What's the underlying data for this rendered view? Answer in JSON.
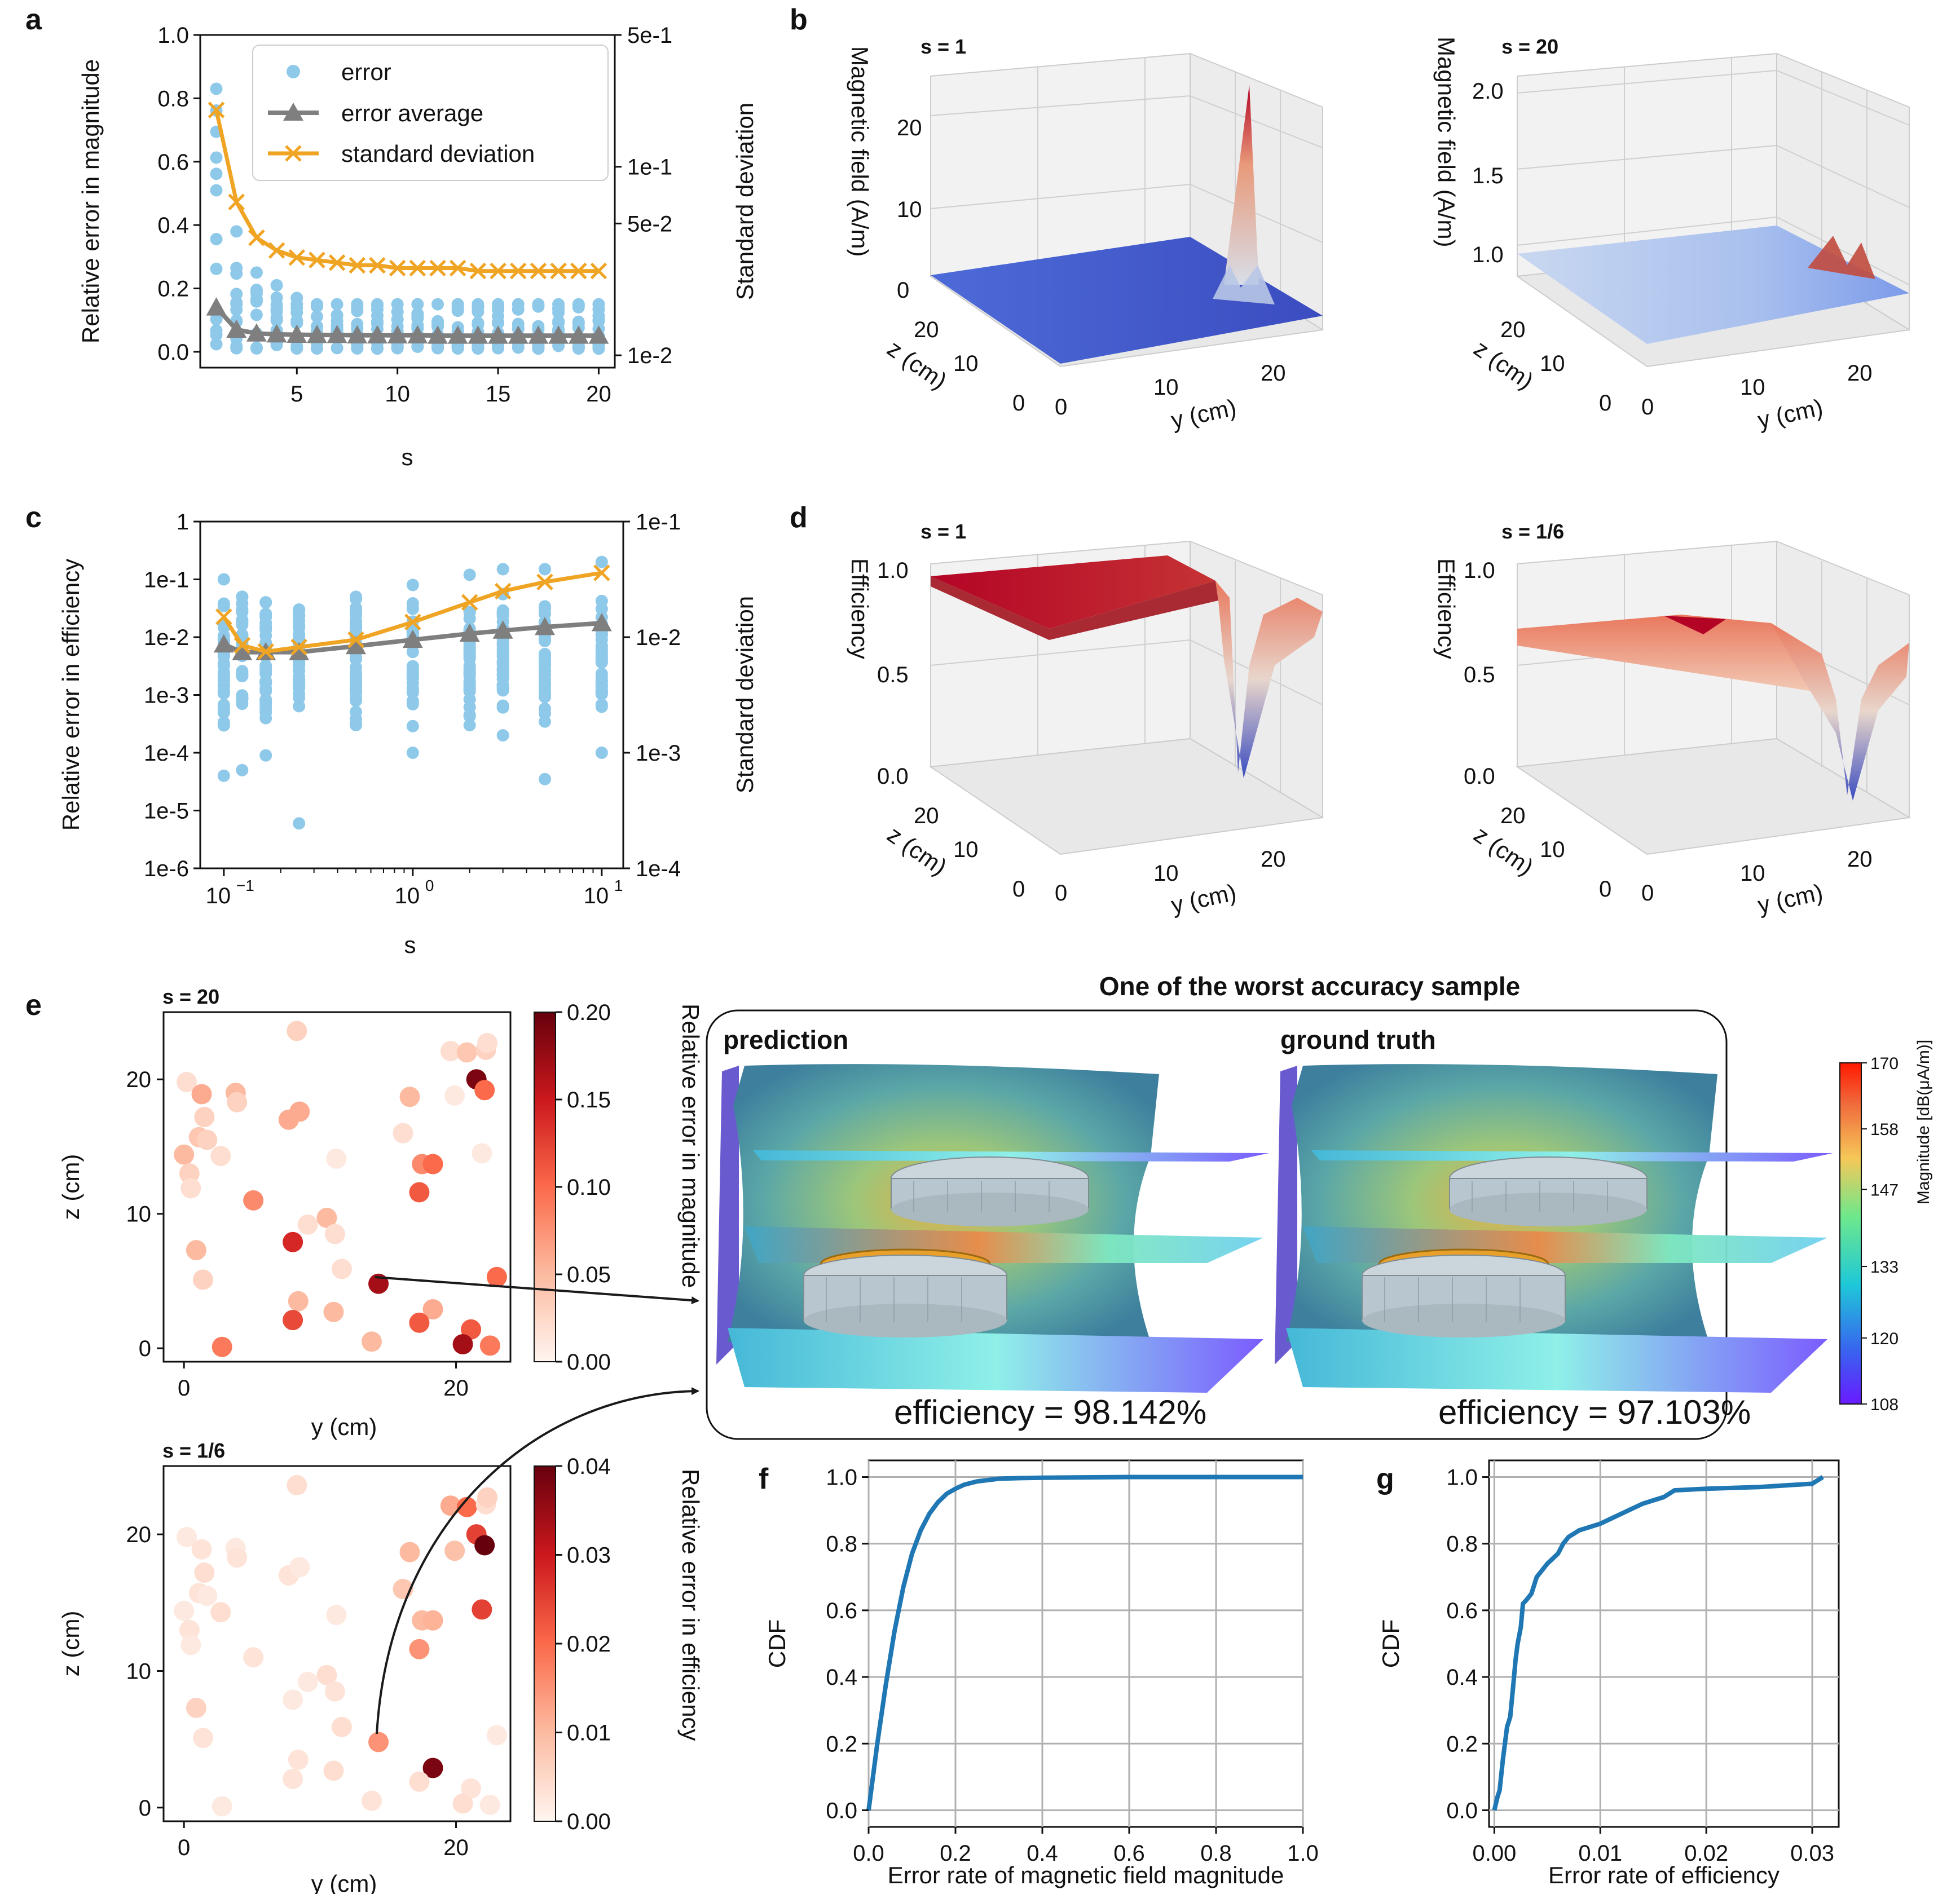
{
  "figure": {
    "panel_letters": [
      "a",
      "b",
      "c",
      "d",
      "e",
      "f",
      "g"
    ],
    "colors": {
      "error_dot": "#8ec9ea",
      "avg": "#7f7f7f",
      "std": "#f0a424",
      "cdf_line": "#1f77b4",
      "grid": "#b0b0b0"
    }
  },
  "chart_data": [
    {
      "id": "a",
      "type": "scatter",
      "title": "",
      "xlabel": "s",
      "ylabel": "Relative error in magnitude",
      "ylabel_right": "Standard deviation",
      "xlim": [
        0.2,
        20.8
      ],
      "ylim": [
        -0.05,
        1.0
      ],
      "ylim_right_log": [
        0.0086,
        0.5
      ],
      "x_ticks": [
        5,
        10,
        15,
        20
      ],
      "x_tick_labels": [
        "5",
        "10",
        "15",
        "20"
      ],
      "y_ticks": [
        0.0,
        0.2,
        0.4,
        0.6,
        0.8,
        1.0
      ],
      "y_tick_labels": [
        "0.0",
        "0.2",
        "0.4",
        "0.6",
        "0.8",
        "1.0"
      ],
      "y_right_ticks": [
        0.01,
        0.05,
        0.1,
        0.5
      ],
      "y_right_tick_labels": [
        "1e-2",
        "5e-2",
        "1e-1",
        "5e-1"
      ],
      "legend": [
        "error",
        "error average",
        "standard deviation"
      ],
      "x": [
        1,
        2,
        3,
        4,
        5,
        6,
        7,
        8,
        9,
        10,
        11,
        12,
        13,
        14,
        15,
        16,
        17,
        18,
        19,
        20
      ],
      "series": [
        {
          "name": "error average",
          "axis": "left",
          "values": [
            0.14,
            0.07,
            0.058,
            0.055,
            0.054,
            0.053,
            0.053,
            0.052,
            0.052,
            0.052,
            0.052,
            0.051,
            0.051,
            0.051,
            0.051,
            0.051,
            0.051,
            0.051,
            0.051,
            0.051
          ]
        },
        {
          "name": "standard deviation",
          "axis": "right",
          "values": [
            0.2,
            0.065,
            0.042,
            0.036,
            0.033,
            0.032,
            0.031,
            0.03,
            0.03,
            0.029,
            0.029,
            0.029,
            0.029,
            0.028,
            0.028,
            0.028,
            0.028,
            0.028,
            0.028,
            0.028
          ]
        },
        {
          "name": "error",
          "axis": "left",
          "max": [
            0.83,
            0.38,
            0.25,
            0.21,
            0.17,
            0.15,
            0.15,
            0.15,
            0.15,
            0.15,
            0.15,
            0.15,
            0.15,
            0.15,
            0.15,
            0.15,
            0.15,
            0.15,
            0.15,
            0.15
          ],
          "min": [
            0.01,
            0.01,
            0.01,
            0.01,
            0.01,
            0.01,
            0.01,
            0.01,
            0.01,
            0.01,
            0.01,
            0.01,
            0.01,
            0.01,
            0.01,
            0.01,
            0.01,
            0.01,
            0.01,
            0.01
          ]
        }
      ]
    },
    {
      "id": "b1",
      "type": "surface",
      "title": "s = 1",
      "zlabel": "Magnetic field (A/m)",
      "ylabel": "y (cm)",
      "xlabel": "z (cm)",
      "z_tick_labels": [
        "0",
        "10",
        "20"
      ],
      "y_tick_labels": [
        "0",
        "10",
        "20"
      ],
      "x_tick_labels": [
        "0",
        "10",
        "20"
      ],
      "zlim": [
        0,
        25
      ],
      "peak_value": 22
    },
    {
      "id": "b2",
      "type": "surface",
      "title": "s = 20",
      "zlabel": "Magnetic field (A/m)",
      "ylabel": "y (cm)",
      "xlabel": "z (cm)",
      "z_tick_labels": [
        "1.0",
        "1.5",
        "2.0"
      ],
      "y_tick_labels": [
        "0",
        "10",
        "20"
      ],
      "x_tick_labels": [
        "0",
        "10",
        "20"
      ],
      "zlim": [
        0.8,
        2.0
      ],
      "peak_value": 1.25
    },
    {
      "id": "c",
      "type": "scatter",
      "title": "",
      "xlabel": "s",
      "ylabel": "Relative error in efficiency",
      "ylabel_right": "Standard deviation",
      "xscale": "log",
      "yscale": "log",
      "xlim": [
        0.075,
        13
      ],
      "ylim": [
        1e-06,
        1
      ],
      "ylim_right": [
        0.0001,
        0.1
      ],
      "x_ticks": [
        0.1,
        1,
        10
      ],
      "x_tick_labels": [
        "10",
        "10",
        "10"
      ],
      "x_tick_exponents": [
        "−1",
        "0",
        "1"
      ],
      "y_ticks": [
        1e-06,
        1e-05,
        0.0001,
        0.001,
        0.01,
        0.1,
        1
      ],
      "y_tick_labels": [
        "1e-6",
        "1e-5",
        "1e-4",
        "1e-3",
        "1e-2",
        "1e-1",
        "1"
      ],
      "y_right_ticks": [
        0.0001,
        0.001,
        0.01,
        0.1
      ],
      "y_right_tick_labels": [
        "1e-4",
        "1e-3",
        "1e-2",
        "1e-1"
      ],
      "x": [
        0.1,
        0.125,
        0.1667,
        0.25,
        0.5,
        1,
        2,
        3,
        5,
        10
      ],
      "series": [
        {
          "name": "error average",
          "axis": "left",
          "values": [
            0.0075,
            0.0055,
            0.0055,
            0.0055,
            0.007,
            0.009,
            0.0115,
            0.013,
            0.015,
            0.0175
          ]
        },
        {
          "name": "standard deviation",
          "axis": "right",
          "values": [
            0.015,
            0.0085,
            0.0075,
            0.0082,
            0.0095,
            0.0135,
            0.02,
            0.025,
            0.03,
            0.036
          ]
        },
        {
          "name": "error",
          "axis": "left",
          "max": [
            0.1,
            0.05,
            0.04,
            0.03,
            0.05,
            0.08,
            0.12,
            0.15,
            0.15,
            0.2
          ],
          "min": [
            4e-05,
            5e-05,
            9e-05,
            6e-06,
            0.0003,
            0.0001,
            0.0003,
            0.0002,
            3.5e-05,
            0.0001
          ]
        }
      ]
    },
    {
      "id": "d1",
      "type": "surface",
      "title": "s = 1",
      "zlabel": "Efficiency",
      "ylabel": "y (cm)",
      "xlabel": "z (cm)",
      "z_tick_labels": [
        "0.0",
        "0.5",
        "1.0"
      ],
      "y_tick_labels": [
        "0",
        "10",
        "20"
      ],
      "x_tick_labels": [
        "0",
        "10",
        "20"
      ],
      "zlim": [
        0,
        1
      ]
    },
    {
      "id": "d2",
      "type": "surface",
      "title": "s = 1/6",
      "zlabel": "Efficiency",
      "ylabel": "y (cm)",
      "xlabel": "z (cm)",
      "z_tick_labels": [
        "0.0",
        "0.5",
        "1.0"
      ],
      "y_tick_labels": [
        "0",
        "10",
        "20"
      ],
      "x_tick_labels": [
        "0",
        "10",
        "20"
      ],
      "zlim": [
        0,
        1
      ]
    },
    {
      "id": "e1",
      "type": "scatter",
      "title": "s = 20",
      "xlabel": "y (cm)",
      "ylabel": "z (cm)",
      "colorbar_label": "Relative error in magnitude",
      "colorbar_range": [
        0,
        0.2
      ],
      "colorbar_ticks": [
        0,
        0.05,
        0.1,
        0.15,
        0.2
      ],
      "colorbar_tick_labels": [
        "0.00",
        "0.05",
        "0.10",
        "0.15",
        "0.20"
      ],
      "xlim": [
        -1.5,
        24
      ],
      "ylim": [
        -1,
        25
      ],
      "x_ticks": [
        0,
        20
      ],
      "x_tick_labels": [
        "0",
        "20"
      ],
      "y_ticks": [
        0,
        10,
        20
      ],
      "y_tick_labels": [
        "0",
        "10",
        "20"
      ],
      "points": [
        [
          0.2,
          19.8,
          0.02
        ],
        [
          1.3,
          18.9,
          0.06
        ],
        [
          1.5,
          17.2,
          0.03
        ],
        [
          1.1,
          15.7,
          0.04
        ],
        [
          1.7,
          15.5,
          0.03
        ],
        [
          0.0,
          14.4,
          0.05
        ],
        [
          2.7,
          14.3,
          0.02
        ],
        [
          0.4,
          13.0,
          0.03
        ],
        [
          0.5,
          11.9,
          0.02
        ],
        [
          3.8,
          19.0,
          0.05
        ],
        [
          3.9,
          18.3,
          0.03
        ],
        [
          5.1,
          11.0,
          0.08
        ],
        [
          0.9,
          7.3,
          0.05
        ],
        [
          1.4,
          5.1,
          0.03
        ],
        [
          2.8,
          0.1,
          0.09
        ],
        [
          8.3,
          23.6,
          0.03
        ],
        [
          7.7,
          17.0,
          0.06
        ],
        [
          8.5,
          17.6,
          0.06
        ],
        [
          9.1,
          9.2,
          0.02
        ],
        [
          11.2,
          14.1,
          0.01
        ],
        [
          10.5,
          9.7,
          0.05
        ],
        [
          11.1,
          8.5,
          0.02
        ],
        [
          11.6,
          5.9,
          0.02
        ],
        [
          8.0,
          7.9,
          0.14
        ],
        [
          8.4,
          3.5,
          0.05
        ],
        [
          8.0,
          2.1,
          0.12
        ],
        [
          11.0,
          2.7,
          0.05
        ],
        [
          14.3,
          4.8,
          0.17
        ],
        [
          13.8,
          0.5,
          0.05
        ],
        [
          16.1,
          16.0,
          0.02
        ],
        [
          16.6,
          18.7,
          0.05
        ],
        [
          17.5,
          13.7,
          0.08
        ],
        [
          18.3,
          13.7,
          0.1
        ],
        [
          17.3,
          11.6,
          0.11
        ],
        [
          18.3,
          2.9,
          0.06
        ],
        [
          17.3,
          1.9,
          0.11
        ],
        [
          19.6,
          22.1,
          0.02
        ],
        [
          19.9,
          18.8,
          0.01
        ],
        [
          20.8,
          22.0,
          0.04
        ],
        [
          21.5,
          20.0,
          0.19
        ],
        [
          22.1,
          19.2,
          0.1
        ],
        [
          21.9,
          14.5,
          0.01
        ],
        [
          22.2,
          22.2,
          0.03
        ],
        [
          22.3,
          22.7,
          0.02
        ],
        [
          21.1,
          1.4,
          0.11
        ],
        [
          20.5,
          0.3,
          0.17
        ],
        [
          22.5,
          0.2,
          0.09
        ],
        [
          23.0,
          5.3,
          0.1
        ]
      ]
    },
    {
      "id": "e2",
      "type": "scatter",
      "title": "s = 1/6",
      "xlabel": "y (cm)",
      "ylabel": "z (cm)",
      "colorbar_label": "Relative error in efficiency",
      "colorbar_range": [
        0,
        0.04
      ],
      "colorbar_ticks": [
        0,
        0.01,
        0.02,
        0.03,
        0.04
      ],
      "colorbar_tick_labels": [
        "0.00",
        "0.01",
        "0.02",
        "0.03",
        "0.04"
      ],
      "xlim": [
        -1.5,
        24
      ],
      "ylim": [
        -1,
        25
      ],
      "x_ticks": [
        0,
        20
      ],
      "x_tick_labels": [
        "0",
        "20"
      ],
      "y_ticks": [
        0,
        10,
        20
      ],
      "y_tick_labels": [
        "0",
        "10",
        "20"
      ],
      "points": [
        [
          0.2,
          19.8,
          0.002
        ],
        [
          1.3,
          18.9,
          0.003
        ],
        [
          1.5,
          17.2,
          0.004
        ],
        [
          1.1,
          15.7,
          0.003
        ],
        [
          1.7,
          15.5,
          0.002
        ],
        [
          0.0,
          14.4,
          0.002
        ],
        [
          2.7,
          14.3,
          0.004
        ],
        [
          0.4,
          13.0,
          0.003
        ],
        [
          0.5,
          11.9,
          0.002
        ],
        [
          3.8,
          19.0,
          0.002
        ],
        [
          3.9,
          18.3,
          0.003
        ],
        [
          5.1,
          11.0,
          0.003
        ],
        [
          0.9,
          7.3,
          0.006
        ],
        [
          1.4,
          5.1,
          0.003
        ],
        [
          2.8,
          0.1,
          0.002
        ],
        [
          8.3,
          23.6,
          0.004
        ],
        [
          7.7,
          17.0,
          0.003
        ],
        [
          8.5,
          17.6,
          0.002
        ],
        [
          9.1,
          9.2,
          0.002
        ],
        [
          11.2,
          14.1,
          0.002
        ],
        [
          10.5,
          9.7,
          0.004
        ],
        [
          11.1,
          8.5,
          0.003
        ],
        [
          11.6,
          5.9,
          0.004
        ],
        [
          8.0,
          7.9,
          0.002
        ],
        [
          8.4,
          3.5,
          0.003
        ],
        [
          8.0,
          2.1,
          0.003
        ],
        [
          11.0,
          2.7,
          0.004
        ],
        [
          14.3,
          4.8,
          0.015
        ],
        [
          13.8,
          0.5,
          0.003
        ],
        [
          16.1,
          16.0,
          0.008
        ],
        [
          16.6,
          18.7,
          0.01
        ],
        [
          17.5,
          13.7,
          0.01
        ],
        [
          18.3,
          13.7,
          0.011
        ],
        [
          17.3,
          11.6,
          0.015
        ],
        [
          18.3,
          2.9,
          0.038
        ],
        [
          17.3,
          1.9,
          0.004
        ],
        [
          19.6,
          22.1,
          0.012
        ],
        [
          19.9,
          18.8,
          0.009
        ],
        [
          20.8,
          22.0,
          0.02
        ],
        [
          21.5,
          20.0,
          0.025
        ],
        [
          22.1,
          19.2,
          0.04
        ],
        [
          21.9,
          14.5,
          0.025
        ],
        [
          22.2,
          22.2,
          0.004
        ],
        [
          22.3,
          22.7,
          0.006
        ],
        [
          21.1,
          1.4,
          0.003
        ],
        [
          20.5,
          0.3,
          0.004
        ],
        [
          22.5,
          0.2,
          0.002
        ],
        [
          23.0,
          5.3,
          0.002
        ]
      ]
    },
    {
      "id": "f",
      "type": "line",
      "title": "",
      "xlabel": "Error rate of magnetic field magnitude",
      "ylabel": "CDF",
      "xlim": [
        0,
        1
      ],
      "ylim": [
        -0.05,
        1.05
      ],
      "x_ticks": [
        0,
        0.2,
        0.4,
        0.6,
        0.8,
        1.0
      ],
      "x_tick_labels": [
        "0.0",
        "0.2",
        "0.4",
        "0.6",
        "0.8",
        "1.0"
      ],
      "y_ticks": [
        0,
        0.2,
        0.4,
        0.6,
        0.8,
        1.0
      ],
      "y_tick_labels": [
        "0.0",
        "0.2",
        "0.4",
        "0.6",
        "0.8",
        "1.0"
      ],
      "x": [
        0,
        0.01,
        0.02,
        0.04,
        0.06,
        0.08,
        0.1,
        0.12,
        0.14,
        0.16,
        0.18,
        0.2,
        0.22,
        0.25,
        0.3,
        0.35,
        0.4,
        0.5,
        0.6,
        0.8,
        1.0
      ],
      "y": [
        0,
        0.1,
        0.2,
        0.38,
        0.54,
        0.67,
        0.77,
        0.84,
        0.89,
        0.925,
        0.95,
        0.965,
        0.977,
        0.987,
        0.995,
        0.997,
        0.998,
        0.999,
        1.0,
        1.0,
        1.0
      ]
    },
    {
      "id": "g",
      "type": "line",
      "title": "",
      "xlabel": "Error rate of efficiency",
      "ylabel": "CDF",
      "xlim": [
        -0.0005,
        0.0325
      ],
      "ylim": [
        -0.05,
        1.05
      ],
      "x_ticks": [
        0,
        0.01,
        0.02,
        0.03
      ],
      "x_tick_labels": [
        "0.00",
        "0.01",
        "0.02",
        "0.03"
      ],
      "y_ticks": [
        0,
        0.2,
        0.4,
        0.6,
        0.8,
        1.0
      ],
      "y_tick_labels": [
        "0.0",
        "0.2",
        "0.4",
        "0.6",
        "0.8",
        "1.0"
      ],
      "x": [
        0,
        0.0003,
        0.0005,
        0.0008,
        0.001,
        0.0012,
        0.0015,
        0.0018,
        0.002,
        0.0022,
        0.0025,
        0.0027,
        0.003,
        0.0035,
        0.004,
        0.0045,
        0.005,
        0.006,
        0.0065,
        0.007,
        0.008,
        0.01,
        0.012,
        0.014,
        0.016,
        0.017,
        0.02,
        0.025,
        0.03,
        0.031
      ],
      "y": [
        0,
        0.04,
        0.06,
        0.15,
        0.2,
        0.25,
        0.28,
        0.38,
        0.45,
        0.5,
        0.55,
        0.62,
        0.63,
        0.65,
        0.7,
        0.72,
        0.74,
        0.77,
        0.8,
        0.82,
        0.84,
        0.86,
        0.89,
        0.92,
        0.94,
        0.96,
        0.965,
        0.97,
        0.98,
        1.0
      ]
    }
  ],
  "sample": {
    "title": "One of the worst accuracy sample",
    "prediction_label": "prediction",
    "truth_label": "ground truth",
    "prediction_efficiency": "efficiency = 98.142%",
    "truth_efficiency": "efficiency = 97.103%",
    "colorbar_label": "Magnitude [dB(μA/m)]",
    "colorbar_tick_labels": [
      "108",
      "120",
      "133",
      "147",
      "158",
      "170"
    ]
  }
}
